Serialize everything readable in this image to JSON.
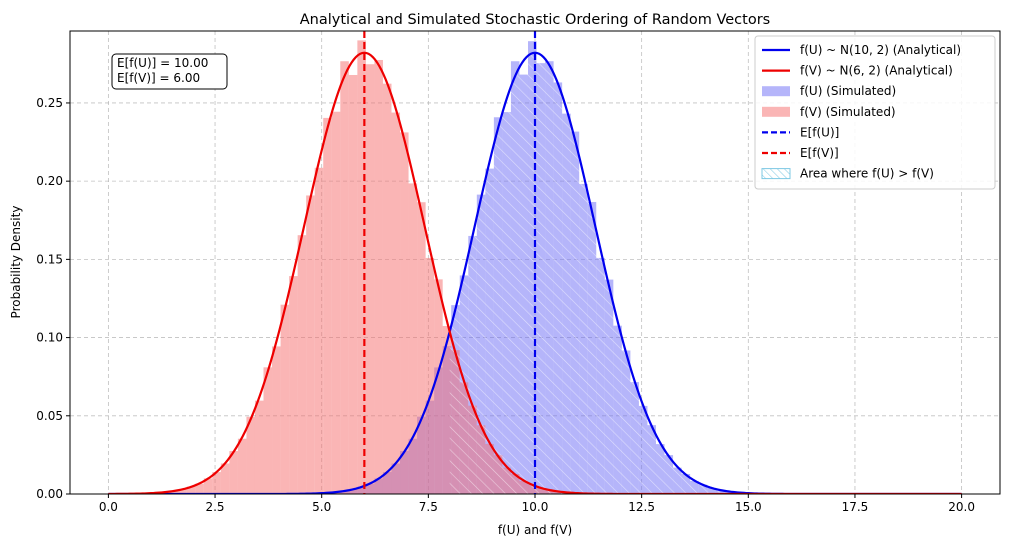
{
  "chart_data": {
    "type": "area",
    "title": "Analytical and Simulated Stochastic Ordering of Random Vectors",
    "xlabel": "f(U) and f(V)",
    "ylabel": "Probability Density",
    "xlim": [
      -0.9,
      20.9
    ],
    "ylim": [
      0,
      0.296
    ],
    "xticks": [
      0.0,
      2.5,
      5.0,
      7.5,
      10.0,
      12.5,
      15.0,
      17.5,
      20.0
    ],
    "xtick_labels": [
      "0.0",
      "2.5",
      "5.0",
      "7.5",
      "10.0",
      "12.5",
      "15.0",
      "17.5",
      "20.0"
    ],
    "yticks": [
      0.0,
      0.05,
      0.1,
      0.15,
      0.2,
      0.25
    ],
    "ytick_labels": [
      "0.00",
      "0.05",
      "0.10",
      "0.15",
      "0.20",
      "0.25"
    ],
    "grid": true,
    "legend_position": "top-right",
    "annotation": [
      "E[f(U)] = 10.00",
      "E[f(V)] = 6.00"
    ],
    "series": [
      {
        "name": "f(U) ~ N(10, 2) (Analytical)",
        "kind": "line",
        "color": "#0000ee",
        "mean": 10,
        "variance": 2,
        "x_range": [
          0,
          20
        ]
      },
      {
        "name": "f(V) ~ N(6, 2) (Analytical)",
        "kind": "line",
        "color": "#ee0000",
        "mean": 6,
        "variance": 2,
        "x_range": [
          0,
          20
        ]
      },
      {
        "name": "f(U) (Simulated)",
        "kind": "histogram",
        "color": "#6b6bf5",
        "bin_width": 0.2,
        "mean": 10,
        "variance": 2
      },
      {
        "name": "f(V) (Simulated)",
        "kind": "histogram",
        "color": "#f56b6b",
        "bin_width": 0.2,
        "mean": 6,
        "variance": 2
      },
      {
        "name": "E[f(U)]",
        "kind": "vline",
        "color": "#0000ee",
        "x": 10.0
      },
      {
        "name": "E[f(V)]",
        "kind": "vline",
        "color": "#ee0000",
        "x": 6.0
      },
      {
        "name": "Area where f(U) > f(V)",
        "kind": "hatched-area",
        "color": "#7ec8e3",
        "from": 8.0
      }
    ]
  }
}
